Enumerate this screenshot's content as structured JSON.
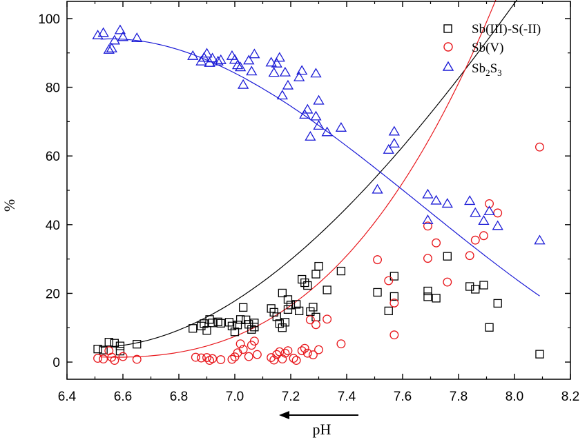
{
  "chart_data": {
    "type": "scatter",
    "title": "",
    "xlabel": "pH",
    "ylabel": "%",
    "xlim": [
      6.4,
      8.2
    ],
    "ylim": [
      -5,
      105
    ],
    "x_ticks": [
      "6.4",
      "6.6",
      "6.8",
      "7.0",
      "7.2",
      "7.4",
      "7.6",
      "7.8",
      "8.0",
      "8.2"
    ],
    "y_ticks": [
      "0",
      "20",
      "40",
      "60",
      "80",
      "100"
    ],
    "x_tick_values": [
      6.4,
      6.6,
      6.8,
      7.0,
      7.2,
      7.4,
      7.6,
      7.8,
      8.0,
      8.2
    ],
    "y_tick_values": [
      0,
      20,
      40,
      60,
      80,
      100
    ],
    "grid": false,
    "legend_position": "top-right",
    "annotation": "arrow pointing left (decreasing pH) under x-axis",
    "series": [
      {
        "name": "Sb(III)-S(-II)",
        "marker": "square",
        "color": "#000000",
        "points": [
          [
            6.51,
            3.8
          ],
          [
            6.53,
            3.5
          ],
          [
            6.55,
            5.8
          ],
          [
            6.57,
            5.5
          ],
          [
            6.59,
            3.2
          ],
          [
            6.59,
            4.7
          ],
          [
            6.65,
            5.2
          ],
          [
            6.85,
            9.8
          ],
          [
            6.88,
            10.5
          ],
          [
            6.89,
            11.2
          ],
          [
            6.9,
            9.2
          ],
          [
            6.91,
            12.4
          ],
          [
            6.92,
            11.4
          ],
          [
            6.94,
            11.7
          ],
          [
            6.95,
            11.3
          ],
          [
            6.98,
            11.6
          ],
          [
            6.99,
            10.5
          ],
          [
            7.0,
            8.8
          ],
          [
            7.01,
            10.8
          ],
          [
            7.02,
            12.4
          ],
          [
            7.03,
            15.9
          ],
          [
            7.04,
            12.3
          ],
          [
            7.05,
            11.0
          ],
          [
            7.06,
            9.5
          ],
          [
            7.07,
            11.4
          ],
          [
            7.07,
            10.2
          ],
          [
            7.13,
            15.6
          ],
          [
            7.14,
            14.5
          ],
          [
            7.15,
            13.2
          ],
          [
            7.16,
            11.2
          ],
          [
            7.17,
            10.0
          ],
          [
            7.18,
            11.6
          ],
          [
            7.19,
            15.3
          ],
          [
            7.17,
            20.1
          ],
          [
            7.19,
            18.2
          ],
          [
            7.2,
            16.6
          ],
          [
            7.22,
            16.8
          ],
          [
            7.23,
            14.9
          ],
          [
            7.24,
            24.1
          ],
          [
            7.25,
            23.1
          ],
          [
            7.26,
            22.3
          ],
          [
            7.27,
            14.7
          ],
          [
            7.28,
            16.0
          ],
          [
            7.29,
            25.6
          ],
          [
            7.3,
            27.9
          ],
          [
            7.29,
            13.1
          ],
          [
            7.33,
            21.0
          ],
          [
            7.38,
            26.5
          ],
          [
            7.51,
            20.3
          ],
          [
            7.55,
            14.9
          ],
          [
            7.57,
            25.0
          ],
          [
            7.57,
            19.1
          ],
          [
            7.69,
            19.0
          ],
          [
            7.69,
            20.7
          ],
          [
            7.72,
            18.6
          ],
          [
            7.76,
            30.8
          ],
          [
            7.84,
            22.0
          ],
          [
            7.86,
            21.2
          ],
          [
            7.89,
            22.4
          ],
          [
            7.91,
            10.1
          ],
          [
            7.94,
            17.1
          ],
          [
            8.09,
            2.3
          ]
        ]
      },
      {
        "name": "Sb(V)",
        "marker": "circle",
        "color": "#e8161b",
        "points": [
          [
            6.51,
            1.1
          ],
          [
            6.53,
            0.9
          ],
          [
            6.55,
            3.3
          ],
          [
            6.56,
            1.4
          ],
          [
            6.57,
            0.5
          ],
          [
            6.6,
            1.6
          ],
          [
            6.65,
            0.8
          ],
          [
            6.86,
            1.4
          ],
          [
            6.88,
            1.2
          ],
          [
            6.9,
            1.3
          ],
          [
            6.91,
            0.5
          ],
          [
            6.92,
            1.0
          ],
          [
            6.95,
            0.7
          ],
          [
            6.99,
            0.8
          ],
          [
            7.0,
            1.5
          ],
          [
            7.01,
            2.7
          ],
          [
            7.02,
            5.3
          ],
          [
            7.03,
            3.7
          ],
          [
            7.05,
            1.6
          ],
          [
            7.06,
            4.9
          ],
          [
            7.07,
            6.1
          ],
          [
            7.08,
            2.2
          ],
          [
            7.13,
            1.3
          ],
          [
            7.14,
            0.6
          ],
          [
            7.15,
            2.2
          ],
          [
            7.16,
            3.0
          ],
          [
            7.17,
            0.9
          ],
          [
            7.18,
            2.6
          ],
          [
            7.19,
            3.3
          ],
          [
            7.21,
            1.1
          ],
          [
            7.22,
            0.5
          ],
          [
            7.24,
            3.3
          ],
          [
            7.25,
            4.0
          ],
          [
            7.26,
            2.6
          ],
          [
            7.27,
            12.3
          ],
          [
            7.28,
            2.1
          ],
          [
            7.29,
            10.9
          ],
          [
            7.3,
            3.6
          ],
          [
            7.33,
            12.5
          ],
          [
            7.38,
            5.3
          ],
          [
            7.51,
            29.8
          ],
          [
            7.55,
            23.7
          ],
          [
            7.57,
            7.9
          ],
          [
            7.57,
            17.2
          ],
          [
            7.69,
            30.2
          ],
          [
            7.69,
            39.6
          ],
          [
            7.72,
            34.7
          ],
          [
            7.76,
            23.3
          ],
          [
            7.84,
            31.0
          ],
          [
            7.86,
            35.5
          ],
          [
            7.89,
            36.8
          ],
          [
            7.91,
            46.1
          ],
          [
            7.94,
            43.4
          ],
          [
            8.09,
            62.6
          ]
        ]
      },
      {
        "name": "Sb2S3",
        "marker": "triangle",
        "color": "#1a1ad6",
        "points": [
          [
            6.51,
            95.1
          ],
          [
            6.53,
            95.8
          ],
          [
            6.55,
            90.9
          ],
          [
            6.56,
            91.3
          ],
          [
            6.57,
            93.6
          ],
          [
            6.59,
            96.6
          ],
          [
            6.6,
            94.6
          ],
          [
            6.65,
            94.3
          ],
          [
            6.85,
            89.1
          ],
          [
            6.88,
            87.5
          ],
          [
            6.89,
            88.6
          ],
          [
            6.9,
            89.8
          ],
          [
            6.91,
            87.1
          ],
          [
            6.92,
            88.4
          ],
          [
            6.94,
            87.5
          ],
          [
            6.95,
            87.9
          ],
          [
            6.99,
            89.1
          ],
          [
            7.0,
            88.0
          ],
          [
            7.01,
            86.4
          ],
          [
            7.02,
            85.8
          ],
          [
            7.03,
            80.7
          ],
          [
            7.05,
            87.8
          ],
          [
            7.06,
            84.6
          ],
          [
            7.07,
            89.6
          ],
          [
            7.13,
            87.2
          ],
          [
            7.14,
            84.2
          ],
          [
            7.15,
            86.9
          ],
          [
            7.16,
            88.6
          ],
          [
            7.17,
            77.6
          ],
          [
            7.18,
            84.3
          ],
          [
            7.19,
            80.5
          ],
          [
            7.23,
            82.9
          ],
          [
            7.24,
            84.8
          ],
          [
            7.25,
            72.0
          ],
          [
            7.26,
            73.5
          ],
          [
            7.27,
            65.6
          ],
          [
            7.29,
            84.0
          ],
          [
            7.29,
            71.5
          ],
          [
            7.3,
            76.1
          ],
          [
            7.3,
            68.8
          ],
          [
            7.33,
            66.9
          ],
          [
            7.38,
            68.2
          ],
          [
            7.51,
            50.2
          ],
          [
            7.55,
            61.8
          ],
          [
            7.57,
            63.6
          ],
          [
            7.57,
            67.1
          ],
          [
            7.69,
            48.8
          ],
          [
            7.69,
            41.3
          ],
          [
            7.72,
            47.0
          ],
          [
            7.76,
            46.1
          ],
          [
            7.84,
            46.9
          ],
          [
            7.86,
            43.4
          ],
          [
            7.89,
            41.1
          ],
          [
            7.91,
            43.9
          ],
          [
            7.94,
            39.6
          ],
          [
            8.09,
            35.4
          ]
        ]
      }
    ],
    "fit_curves": [
      {
        "series": "Sb(III)-S(-II)",
        "color": "#000000",
        "coeffs": [
          4.3,
          2.67,
          57.4,
          -9.1
        ],
        "x0": 6.52,
        "range": [
          6.52,
          8.09
        ]
      },
      {
        "series": "Sb(V)",
        "color": "#e8161b",
        "coeffs": [
          1.5,
          -2.54,
          19.6,
          24.24
        ],
        "x0": 6.52,
        "range": [
          6.52,
          8.09
        ]
      },
      {
        "series": "Sb2S3",
        "color": "#1a1ad6",
        "coeffs": [
          94.0,
          4.6,
          -60.9,
          17.6
        ],
        "x0": 6.52,
        "range": [
          6.52,
          8.09
        ]
      }
    ]
  }
}
